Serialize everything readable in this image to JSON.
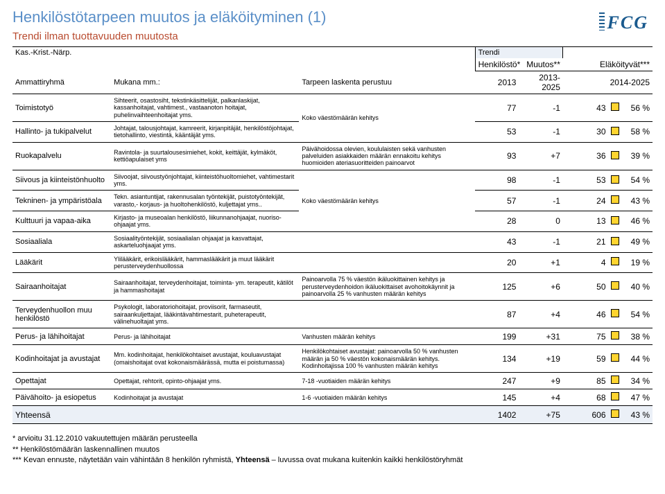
{
  "title": "Henkilöstötarpeen muutos ja eläköityminen (1)",
  "subtitle": "Trendi ilman tuottavuuden muutosta",
  "logo": "FCG",
  "header": {
    "kas": "Kas.-Krist.-Närp.",
    "trendi": "Trendi",
    "col_h1": "Henkilöstö*",
    "col_h2": "Muutos**",
    "col_h3": "Eläköityvät***",
    "row2_c1": "Ammattiryhmä",
    "row2_c2": "Mukana mm.:",
    "row2_c3": "Tarpeen laskenta perustuu",
    "row2_c4": "2013",
    "row2_c5": "2013-2025",
    "row2_c6": "2014-2025"
  },
  "rows": [
    {
      "name": "Toimistotyö",
      "desc": "Sihteerit, osastosiht, tekstinkäsittelijät, palkanlaskijat, kassanhoitajat, vahtimest., vastaanoton hoitajat, puhelinvaihteenhoitajat yms.",
      "basis": "Koko väestömäärän kehitys",
      "v1": "77",
      "v2": "-1",
      "v3": "43",
      "pct": "56 %",
      "merge": "top"
    },
    {
      "name": "Hallinto- ja tukipalvelut",
      "desc": "Johtajat, talousjohtajat, kamreerit, kirjanpitäjät, henkilöstöjohtajat, tietohallinto, viestintä, kääntäjät yms.",
      "v1": "53",
      "v2": "-1",
      "v3": "30",
      "pct": "58 %",
      "merge": "bottom"
    },
    {
      "name": "Ruokapalvelu",
      "desc": "Ravintola- ja suurtalousesimiehet, kokit, keittäjät, kylmäköt, kettiöapulaiset yms",
      "basis": "Päivähoidossa olevien, koululaisten sekä vanhusten palveluiden asiakkaiden määrän ennakoitu kehitys huomioiden ateriasuoritteiden painoarvot",
      "v1": "93",
      "v2": "+7",
      "v3": "36",
      "pct": "39 %"
    },
    {
      "name": "Siivous ja kiinteistönhuolto",
      "desc": "Siivoojat, siivoustyönjohtajat, kiinteistöhuoltomiehet, vahtimestarit yms.",
      "v1": "98",
      "v2": "-1",
      "v3": "53",
      "pct": "54 %",
      "merge": "top3"
    },
    {
      "name": "Tekninen- ja ympäristöala",
      "desc": "Tekn. asiantuntijat, rakennusalan työntekijät, puistotyöntekijät, varasto,- korjaus- ja huoltohenkilöstö, kuljettajat yms..",
      "basis": "Koko väestömäärän kehitys",
      "v1": "57",
      "v2": "-1",
      "v3": "24",
      "pct": "43 %",
      "merge": "mid3"
    },
    {
      "name": "Kulttuuri ja vapaa-aika",
      "desc": "Kirjasto- ja museoalan henkilöstö, liikunnanohjaajat, nuoriso-ohjaajat yms.",
      "v1": "28",
      "v2": "0",
      "v3": "13",
      "pct": "46 %",
      "merge": "bot3"
    },
    {
      "name": "Sosiaaliala",
      "desc": "Sosiaalityöntekijät, sosiaalialan ohjaajat ja kasvattajat, askarteluohjaajat yms.",
      "v1": "43",
      "v2": "-1",
      "v3": "21",
      "pct": "49 %"
    },
    {
      "name": "Lääkärit",
      "desc": "Ylilääkärit, erikoislääkärit, hammaslääkärit ja muut lääkärit perusterveydenhuollossa",
      "v1": "20",
      "v2": "+1",
      "v3": "4",
      "pct": "19 %"
    },
    {
      "name": "Sairaanhoitajat",
      "desc": "Sairaanhoitajat, terveydenhoitajat, toiminta- ym. terapeutit, kätilöt ja hammashoitajat",
      "basis": "Painoarvolla 75 % väestön ikäluokittainen kehitys ja perusterveydenhoidon ikäluokittaiset avohoitokäynnit ja painoarvolla 25 % vanhusten määrän kehitys",
      "v1": "125",
      "v2": "+6",
      "v3": "50",
      "pct": "40 %"
    },
    {
      "name": "Terveydenhuollon muu henkilöstö",
      "desc": "Psykologit, laboratoriohoitajat, proviisorit, farmaseutit, sairaankuljettajat, lääkintävahtimestarit, puheterapeutit, välinehuoltajat yms.",
      "v1": "87",
      "v2": "+4",
      "v3": "46",
      "pct": "54 %"
    },
    {
      "name": "Perus- ja lähihoitajat",
      "desc": "Perus- ja lähihoitajat",
      "basis": "Vanhusten määrän kehitys",
      "v1": "199",
      "v2": "+31",
      "v3": "75",
      "pct": "38 %"
    },
    {
      "name": "Kodinhoitajat ja avustajat",
      "desc": "Mm. kodinhoitajat, henkilökohtaiset avustajat, kouluavustajat (omaishoitajat ovat kokonaismäärässä, mutta ei poistumassa)",
      "basis": "Henkilökohtaiset avustajat: painoarvolla 50 % vanhusten määrän ja 50 % väestön kokonaismäärän kehitys. Kodinhoitajissa 100 % vanhusten määrän kehitys",
      "v1": "134",
      "v2": "+19",
      "v3": "59",
      "pct": "44 %"
    },
    {
      "name": "Opettajat",
      "desc": "Opettajat, rehtorit, opinto-ohjaajat yms.",
      "basis": "7-18 -vuotiaiden määrän kehitys",
      "v1": "247",
      "v2": "+9",
      "v3": "85",
      "pct": "34 %"
    },
    {
      "name": "Päivähoito- ja esiopetus",
      "desc": "Kodinhoitajat ja avustajat",
      "basis": "1-6 -vuotiaiden määrän kehitys",
      "v1": "145",
      "v2": "+4",
      "v3": "68",
      "pct": "47 %"
    }
  ],
  "total": {
    "label": "Yhteensä",
    "v1": "1402",
    "v2": "+75",
    "v3": "606",
    "pct": "43 %"
  },
  "footnotes": {
    "f1": "* arvioitu 31.12.2010 vakuutettujen määrän perusteella",
    "f2": "** Henkilöstömäärän laskennallinen muutos",
    "f3a": "*** Kevan ennuste, näytetään vain vähintään 8 henkilön ryhmistä, ",
    "f3b": "Yhteensä",
    "f3c": " – luvussa ovat mukana kuitenkin kaikki henkilöstöryhmät"
  },
  "colors": {
    "box": "#ffd430",
    "header_bg": "#ebf0f7"
  }
}
